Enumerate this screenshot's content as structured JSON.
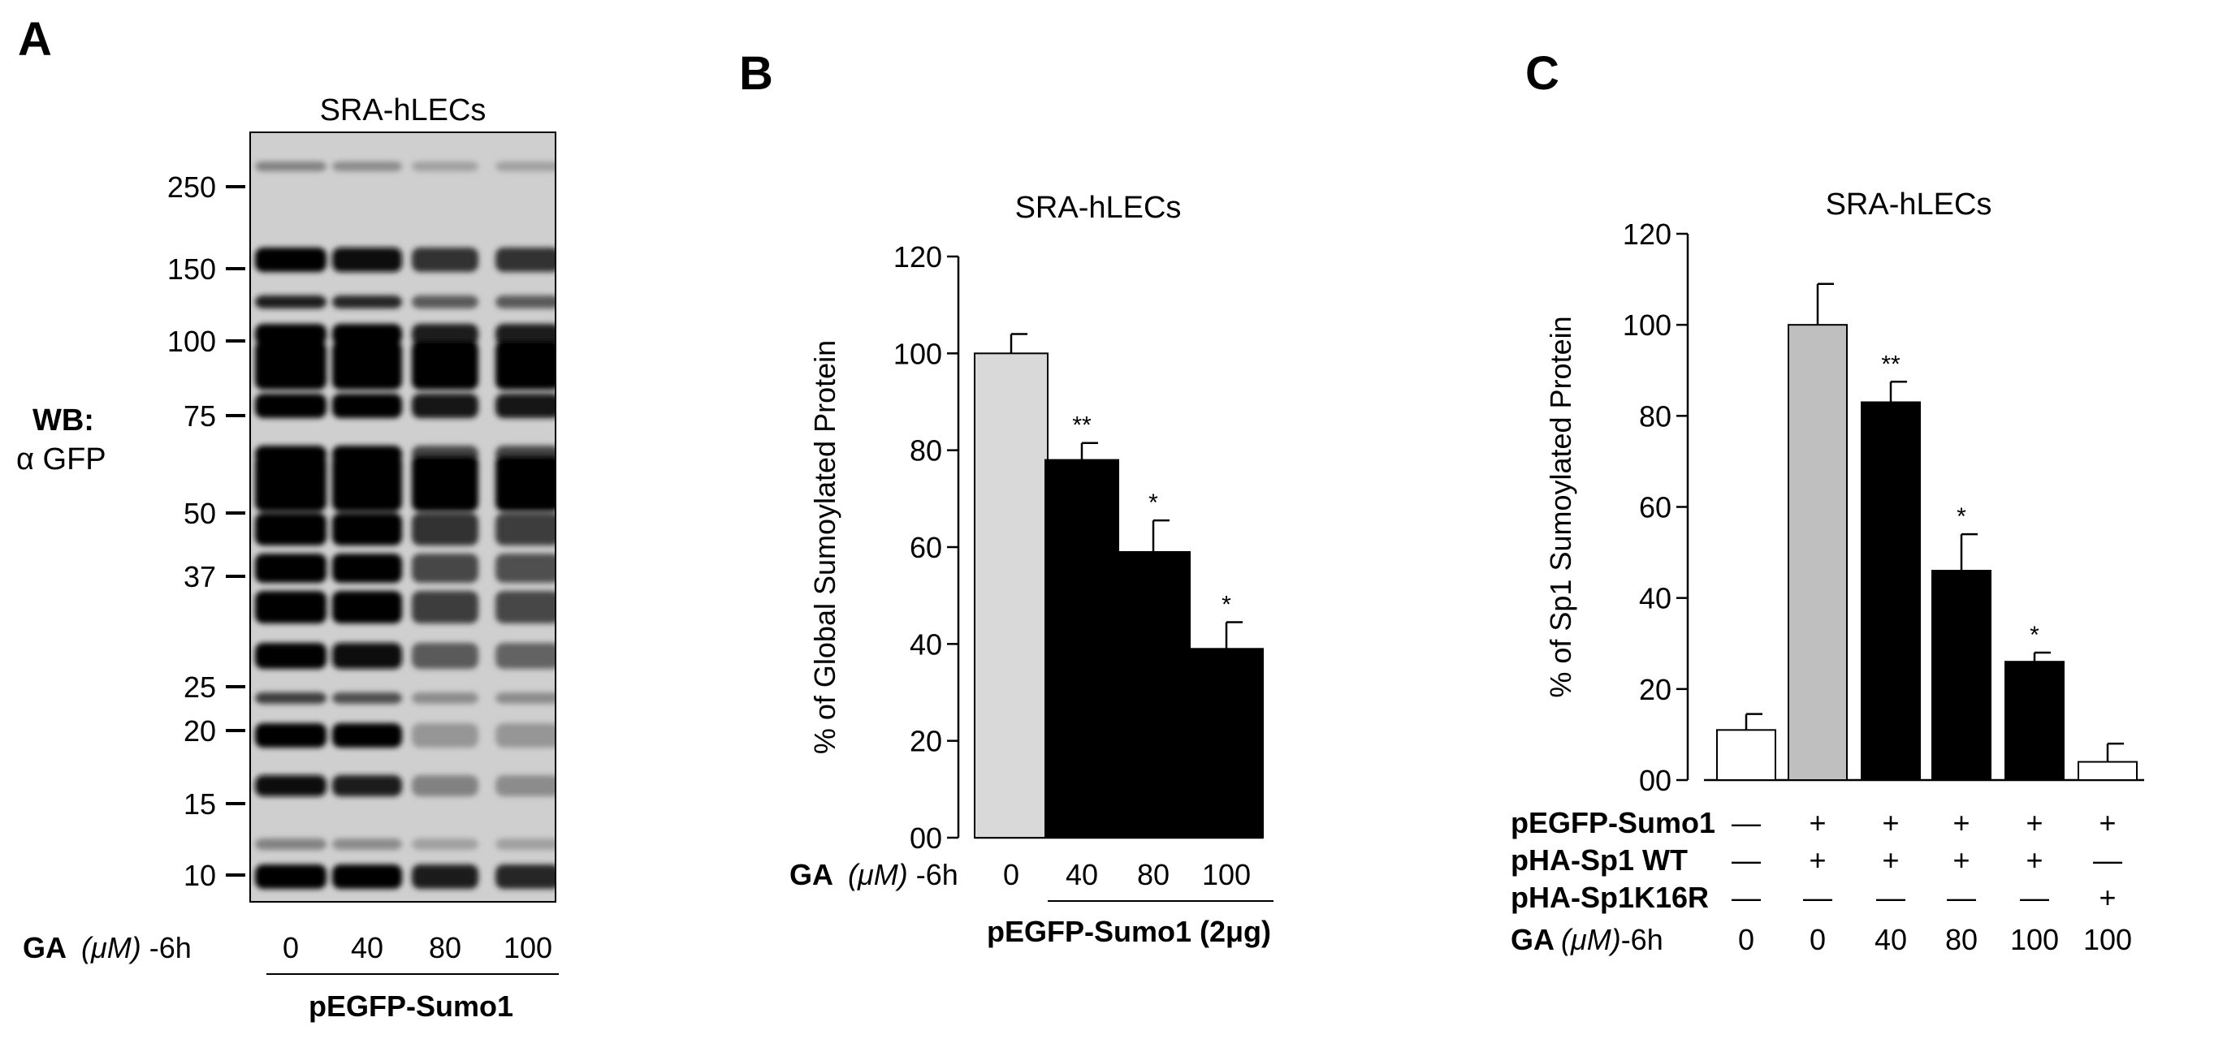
{
  "panels": {
    "a": {
      "letter": "A",
      "title": "SRA-hLECs",
      "wb_label": "WB:",
      "antibody": "α GFP",
      "mw_markers": [
        "250",
        "150",
        "100",
        "75",
        "50",
        "37",
        "25",
        "20",
        "15",
        "10"
      ],
      "ga_prefix": "GA",
      "ga_unit": "(μM)",
      "ga_suffix": "-6h",
      "lanes": [
        "0",
        "40",
        "80",
        "100"
      ],
      "plasmid": "pEGFP-Sumo1"
    },
    "b": {
      "letter": "B",
      "ga_prefix": "GA",
      "ga_unit": "(μM)",
      "ga_suffix": "-6h",
      "plasmid": "pEGFP-Sumo1 (2μg)"
    },
    "c": {
      "letter": "C",
      "ga_prefix": "GA",
      "ga_unit": "(μM)",
      "ga_suffix": "-6h",
      "rows": [
        {
          "label": "pEGFP-Sumo1",
          "marks": [
            "—",
            "+",
            "+",
            "+",
            "+",
            "+"
          ]
        },
        {
          "label": "pHA-Sp1 WT",
          "marks": [
            "—",
            "+",
            "+",
            "+",
            "+",
            "—"
          ]
        },
        {
          "label": "pHA-Sp1K16R",
          "marks": [
            "—",
            "—",
            "—",
            "—",
            "—",
            "+"
          ]
        }
      ],
      "ga_values": [
        "0",
        "0",
        "40",
        "80",
        "100",
        "100"
      ]
    }
  },
  "chart_data": [
    {
      "type": "bar",
      "title": "SRA-hLECs",
      "ylabel": "% of Global Sumoylated Protein",
      "xlabel": "GA (μM)-6h",
      "categories": [
        "0",
        "40",
        "80",
        "100"
      ],
      "values": [
        100,
        78,
        59,
        39
      ],
      "errors": [
        4,
        3.5,
        6.5,
        5.5
      ],
      "significance": [
        "",
        "**",
        "*",
        "*"
      ],
      "colors": [
        "#d9d9d9",
        "#000000",
        "#000000",
        "#000000"
      ],
      "ylim": [
        0,
        120
      ],
      "yticks": [
        "00",
        "20",
        "40",
        "60",
        "80",
        "100",
        "120"
      ]
    },
    {
      "type": "bar",
      "title": "SRA-hLECs",
      "ylabel": "% of Sp1 Sumoylated Protein",
      "xlabel": "GA (μM)-6h",
      "categories": [
        "0",
        "0",
        "40",
        "80",
        "100",
        "100"
      ],
      "values": [
        11,
        100,
        83,
        46,
        26,
        4
      ],
      "errors": [
        3.5,
        9,
        4.5,
        8,
        2,
        4
      ],
      "significance": [
        "",
        "",
        "**",
        "*",
        "*",
        ""
      ],
      "colors": [
        "#ffffff",
        "#bfbfbf",
        "#000000",
        "#000000",
        "#000000",
        "#ffffff"
      ],
      "ylim": [
        0,
        120
      ],
      "yticks": [
        "00",
        "20",
        "40",
        "60",
        "80",
        "100",
        "120"
      ]
    }
  ]
}
